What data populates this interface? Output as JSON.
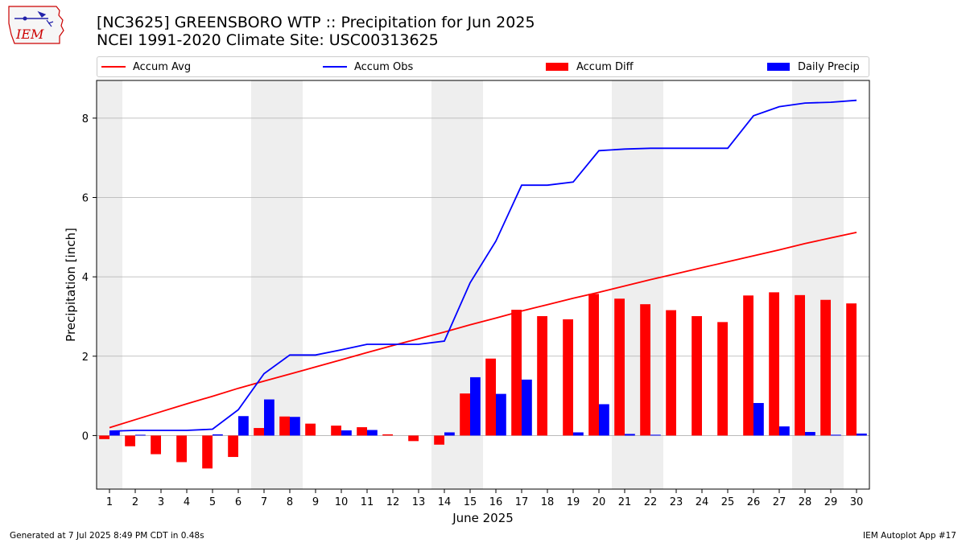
{
  "header": {
    "title_line1": "[NC3625] GREENSBORO WTP :: Precipitation for Jun 2025",
    "title_line2": "NCEI 1991-2020 Climate Site: USC00313625"
  },
  "logo": {
    "text": "IEM"
  },
  "footer": {
    "left": "Generated at 7 Jul 2025 8:49 PM CDT in 0.48s",
    "right": "IEM Autoplot App #17"
  },
  "colors": {
    "avg": "#ff0000",
    "obs": "#0000ff",
    "diff": "#ff0000",
    "daily": "#0000ff",
    "weekend": "#eeeeee",
    "grid": "#b0b0b0"
  },
  "chart_data": {
    "type": "bar",
    "title": "[NC3625] GREENSBORO WTP :: Precipitation for Jun 2025",
    "subtitle": "NCEI 1991-2020 Climate Site: USC00313625",
    "xlabel": "June 2025",
    "ylabel": "Precipitation [inch]",
    "ylim": [
      -1.35,
      8.95
    ],
    "yticks": [
      0,
      2,
      4,
      6,
      8
    ],
    "grid": "horizontal",
    "legend_placement": "top",
    "categories": [
      "1",
      "2",
      "3",
      "4",
      "5",
      "6",
      "7",
      "8",
      "9",
      "10",
      "11",
      "12",
      "13",
      "14",
      "15",
      "16",
      "17",
      "18",
      "19",
      "20",
      "21",
      "22",
      "23",
      "24",
      "25",
      "26",
      "27",
      "28",
      "29",
      "30"
    ],
    "weekend_days": [
      1,
      7,
      8,
      14,
      15,
      21,
      22,
      28,
      29
    ],
    "series": [
      {
        "name": "Accum Avg",
        "kind": "line",
        "values": [
          0.2,
          0.4,
          0.6,
          0.8,
          0.99,
          1.19,
          1.37,
          1.55,
          1.73,
          1.91,
          2.09,
          2.27,
          2.44,
          2.61,
          2.79,
          2.96,
          3.14,
          3.3,
          3.46,
          3.61,
          3.77,
          3.93,
          4.08,
          4.23,
          4.38,
          4.53,
          4.68,
          4.84,
          4.98,
          5.12
        ]
      },
      {
        "name": "Accum Obs",
        "kind": "line",
        "values": [
          0.11,
          0.13,
          0.13,
          0.13,
          0.16,
          0.65,
          1.56,
          2.03,
          2.03,
          2.16,
          2.3,
          2.3,
          2.3,
          2.38,
          3.85,
          4.9,
          6.31,
          6.31,
          6.39,
          7.18,
          7.22,
          7.24,
          7.24,
          7.24,
          7.24,
          8.06,
          8.29,
          8.38,
          8.4,
          8.45
        ]
      },
      {
        "name": "Accum Diff",
        "kind": "bar",
        "values": [
          -0.09,
          -0.27,
          -0.47,
          -0.67,
          -0.83,
          -0.54,
          0.19,
          0.48,
          0.3,
          0.25,
          0.21,
          0.03,
          -0.14,
          -0.23,
          1.06,
          1.94,
          3.17,
          3.01,
          2.93,
          3.57,
          3.45,
          3.31,
          3.16,
          3.01,
          2.86,
          3.53,
          3.61,
          3.54,
          3.42,
          3.33
        ]
      },
      {
        "name": "Daily Precip",
        "kind": "bar",
        "values": [
          0.11,
          0.02,
          0.0,
          0.0,
          0.03,
          0.49,
          0.91,
          0.47,
          0.0,
          0.13,
          0.14,
          0.0,
          0.0,
          0.08,
          1.47,
          1.05,
          1.41,
          0.0,
          0.08,
          0.79,
          0.04,
          0.02,
          0.0,
          0.0,
          0.0,
          0.82,
          0.23,
          0.09,
          0.02,
          0.05
        ]
      }
    ]
  }
}
